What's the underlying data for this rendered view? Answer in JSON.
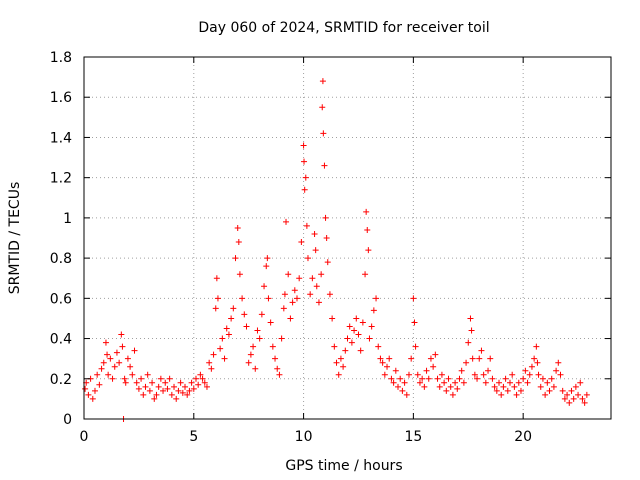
{
  "chart_data": {
    "type": "scatter",
    "title": "Day 060 of 2024, SRMTID for receiver toil",
    "xlabel": "GPS time / hours",
    "ylabel": "SRMTID / TECUs",
    "xlim": [
      0,
      24
    ],
    "ylim": [
      0,
      1.8
    ],
    "xticks": [
      0,
      5,
      10,
      15,
      20
    ],
    "xtick_labels": [
      "0",
      "5",
      "10",
      "15",
      "20"
    ],
    "yticks": [
      0,
      0.2,
      0.4,
      0.6,
      0.8,
      1.0,
      1.2,
      1.4,
      1.6,
      1.8
    ],
    "ytick_labels": [
      "0",
      "0.2",
      "0.4",
      "0.6",
      "0.8",
      "1",
      "1.2",
      "1.4",
      "1.6",
      "1.8"
    ],
    "grid": true,
    "marker": "+",
    "marker_color": "#ff0000",
    "series": [
      {
        "name": "SRMTID",
        "points": [
          [
            0.05,
            0.15
          ],
          [
            0.1,
            0.18
          ],
          [
            0.2,
            0.12
          ],
          [
            0.3,
            0.2
          ],
          [
            0.4,
            0.1
          ],
          [
            0.5,
            0.14
          ],
          [
            0.6,
            0.22
          ],
          [
            0.7,
            0.17
          ],
          [
            0.8,
            0.25
          ],
          [
            0.9,
            0.28
          ],
          [
            1.0,
            0.38
          ],
          [
            1.05,
            0.32
          ],
          [
            1.1,
            0.22
          ],
          [
            1.2,
            0.3
          ],
          [
            1.3,
            0.2
          ],
          [
            1.4,
            0.26
          ],
          [
            1.5,
            0.33
          ],
          [
            1.6,
            0.28
          ],
          [
            1.7,
            0.42
          ],
          [
            1.75,
            0.36
          ],
          [
            1.8,
            0.0
          ],
          [
            1.85,
            0.2
          ],
          [
            1.9,
            0.18
          ],
          [
            2.0,
            0.3
          ],
          [
            2.1,
            0.26
          ],
          [
            2.2,
            0.22
          ],
          [
            2.3,
            0.34
          ],
          [
            2.4,
            0.18
          ],
          [
            2.5,
            0.15
          ],
          [
            2.6,
            0.2
          ],
          [
            2.7,
            0.12
          ],
          [
            2.8,
            0.16
          ],
          [
            2.9,
            0.22
          ],
          [
            3.0,
            0.14
          ],
          [
            3.1,
            0.18
          ],
          [
            3.2,
            0.1
          ],
          [
            3.3,
            0.12
          ],
          [
            3.4,
            0.16
          ],
          [
            3.5,
            0.2
          ],
          [
            3.6,
            0.14
          ],
          [
            3.7,
            0.18
          ],
          [
            3.8,
            0.15
          ],
          [
            3.9,
            0.2
          ],
          [
            4.0,
            0.12
          ],
          [
            4.1,
            0.16
          ],
          [
            4.2,
            0.1
          ],
          [
            4.3,
            0.14
          ],
          [
            4.4,
            0.18
          ],
          [
            4.5,
            0.13
          ],
          [
            4.6,
            0.16
          ],
          [
            4.7,
            0.12
          ],
          [
            4.8,
            0.14
          ],
          [
            4.9,
            0.18
          ],
          [
            5.0,
            0.15
          ],
          [
            5.1,
            0.2
          ],
          [
            5.2,
            0.17
          ],
          [
            5.3,
            0.22
          ],
          [
            5.4,
            0.2
          ],
          [
            5.5,
            0.18
          ],
          [
            5.6,
            0.16
          ],
          [
            5.7,
            0.28
          ],
          [
            5.8,
            0.25
          ],
          [
            5.9,
            0.32
          ],
          [
            6.0,
            0.55
          ],
          [
            6.05,
            0.7
          ],
          [
            6.1,
            0.6
          ],
          [
            6.2,
            0.35
          ],
          [
            6.3,
            0.4
          ],
          [
            6.4,
            0.3
          ],
          [
            6.5,
            0.45
          ],
          [
            6.6,
            0.42
          ],
          [
            6.7,
            0.5
          ],
          [
            6.8,
            0.55
          ],
          [
            6.9,
            0.8
          ],
          [
            7.0,
            0.95
          ],
          [
            7.05,
            0.88
          ],
          [
            7.1,
            0.72
          ],
          [
            7.2,
            0.6
          ],
          [
            7.3,
            0.52
          ],
          [
            7.4,
            0.46
          ],
          [
            7.5,
            0.28
          ],
          [
            7.6,
            0.32
          ],
          [
            7.7,
            0.36
          ],
          [
            7.8,
            0.25
          ],
          [
            7.9,
            0.44
          ],
          [
            8.0,
            0.4
          ],
          [
            8.1,
            0.52
          ],
          [
            8.2,
            0.66
          ],
          [
            8.3,
            0.76
          ],
          [
            8.35,
            0.8
          ],
          [
            8.4,
            0.6
          ],
          [
            8.5,
            0.48
          ],
          [
            8.6,
            0.36
          ],
          [
            8.7,
            0.3
          ],
          [
            8.8,
            0.25
          ],
          [
            8.9,
            0.22
          ],
          [
            9.0,
            0.4
          ],
          [
            9.1,
            0.55
          ],
          [
            9.15,
            0.62
          ],
          [
            9.2,
            0.98
          ],
          [
            9.3,
            0.72
          ],
          [
            9.4,
            0.5
          ],
          [
            9.5,
            0.58
          ],
          [
            9.6,
            0.64
          ],
          [
            9.7,
            0.6
          ],
          [
            9.8,
            0.7
          ],
          [
            9.9,
            0.88
          ],
          [
            10.0,
            1.36
          ],
          [
            10.02,
            1.28
          ],
          [
            10.05,
            1.14
          ],
          [
            10.1,
            1.2
          ],
          [
            10.15,
            0.96
          ],
          [
            10.2,
            0.8
          ],
          [
            10.3,
            0.62
          ],
          [
            10.4,
            0.7
          ],
          [
            10.5,
            0.92
          ],
          [
            10.55,
            0.84
          ],
          [
            10.6,
            0.66
          ],
          [
            10.7,
            0.58
          ],
          [
            10.8,
            0.72
          ],
          [
            10.85,
            1.55
          ],
          [
            10.88,
            1.68
          ],
          [
            10.9,
            1.42
          ],
          [
            10.95,
            1.26
          ],
          [
            11.0,
            1.0
          ],
          [
            11.05,
            0.9
          ],
          [
            11.1,
            0.78
          ],
          [
            11.2,
            0.62
          ],
          [
            11.3,
            0.5
          ],
          [
            11.4,
            0.36
          ],
          [
            11.5,
            0.28
          ],
          [
            11.6,
            0.22
          ],
          [
            11.7,
            0.3
          ],
          [
            11.8,
            0.26
          ],
          [
            11.9,
            0.34
          ],
          [
            12.0,
            0.4
          ],
          [
            12.1,
            0.46
          ],
          [
            12.2,
            0.38
          ],
          [
            12.3,
            0.44
          ],
          [
            12.4,
            0.5
          ],
          [
            12.5,
            0.42
          ],
          [
            12.6,
            0.34
          ],
          [
            12.7,
            0.48
          ],
          [
            12.8,
            0.72
          ],
          [
            12.85,
            1.03
          ],
          [
            12.9,
            0.94
          ],
          [
            12.95,
            0.84
          ],
          [
            13.0,
            0.4
          ],
          [
            13.1,
            0.46
          ],
          [
            13.2,
            0.54
          ],
          [
            13.3,
            0.6
          ],
          [
            13.4,
            0.36
          ],
          [
            13.5,
            0.3
          ],
          [
            13.6,
            0.28
          ],
          [
            13.7,
            0.22
          ],
          [
            13.8,
            0.26
          ],
          [
            13.9,
            0.3
          ],
          [
            14.0,
            0.2
          ],
          [
            14.1,
            0.18
          ],
          [
            14.2,
            0.24
          ],
          [
            14.3,
            0.16
          ],
          [
            14.4,
            0.2
          ],
          [
            14.5,
            0.14
          ],
          [
            14.6,
            0.18
          ],
          [
            14.7,
            0.12
          ],
          [
            14.8,
            0.22
          ],
          [
            14.9,
            0.3
          ],
          [
            15.0,
            0.6
          ],
          [
            15.05,
            0.48
          ],
          [
            15.1,
            0.36
          ],
          [
            15.2,
            0.22
          ],
          [
            15.3,
            0.18
          ],
          [
            15.4,
            0.2
          ],
          [
            15.5,
            0.16
          ],
          [
            15.6,
            0.24
          ],
          [
            15.7,
            0.2
          ],
          [
            15.8,
            0.3
          ],
          [
            15.9,
            0.26
          ],
          [
            16.0,
            0.32
          ],
          [
            16.1,
            0.2
          ],
          [
            16.2,
            0.16
          ],
          [
            16.3,
            0.22
          ],
          [
            16.4,
            0.18
          ],
          [
            16.5,
            0.14
          ],
          [
            16.6,
            0.2
          ],
          [
            16.7,
            0.16
          ],
          [
            16.8,
            0.12
          ],
          [
            16.9,
            0.18
          ],
          [
            17.0,
            0.15
          ],
          [
            17.1,
            0.2
          ],
          [
            17.2,
            0.24
          ],
          [
            17.3,
            0.18
          ],
          [
            17.4,
            0.28
          ],
          [
            17.5,
            0.38
          ],
          [
            17.6,
            0.5
          ],
          [
            17.65,
            0.44
          ],
          [
            17.7,
            0.3
          ],
          [
            17.8,
            0.22
          ],
          [
            17.9,
            0.2
          ],
          [
            18.0,
            0.3
          ],
          [
            18.1,
            0.34
          ],
          [
            18.2,
            0.22
          ],
          [
            18.3,
            0.18
          ],
          [
            18.4,
            0.24
          ],
          [
            18.5,
            0.3
          ],
          [
            18.6,
            0.2
          ],
          [
            18.7,
            0.16
          ],
          [
            18.8,
            0.14
          ],
          [
            18.9,
            0.18
          ],
          [
            19.0,
            0.12
          ],
          [
            19.1,
            0.16
          ],
          [
            19.2,
            0.2
          ],
          [
            19.3,
            0.14
          ],
          [
            19.4,
            0.18
          ],
          [
            19.5,
            0.22
          ],
          [
            19.6,
            0.16
          ],
          [
            19.7,
            0.12
          ],
          [
            19.8,
            0.18
          ],
          [
            19.9,
            0.14
          ],
          [
            20.0,
            0.2
          ],
          [
            20.1,
            0.24
          ],
          [
            20.2,
            0.18
          ],
          [
            20.3,
            0.22
          ],
          [
            20.4,
            0.26
          ],
          [
            20.5,
            0.3
          ],
          [
            20.6,
            0.36
          ],
          [
            20.65,
            0.28
          ],
          [
            20.7,
            0.22
          ],
          [
            20.8,
            0.16
          ],
          [
            20.9,
            0.2
          ],
          [
            21.0,
            0.12
          ],
          [
            21.1,
            0.18
          ],
          [
            21.2,
            0.14
          ],
          [
            21.3,
            0.2
          ],
          [
            21.4,
            0.16
          ],
          [
            21.5,
            0.24
          ],
          [
            21.6,
            0.28
          ],
          [
            21.7,
            0.22
          ],
          [
            21.8,
            0.14
          ],
          [
            21.9,
            0.1
          ],
          [
            22.0,
            0.12
          ],
          [
            22.1,
            0.08
          ],
          [
            22.2,
            0.14
          ],
          [
            22.3,
            0.1
          ],
          [
            22.4,
            0.16
          ],
          [
            22.5,
            0.12
          ],
          [
            22.6,
            0.18
          ],
          [
            22.7,
            0.1
          ],
          [
            22.8,
            0.08
          ],
          [
            22.9,
            0.12
          ]
        ]
      }
    ]
  }
}
